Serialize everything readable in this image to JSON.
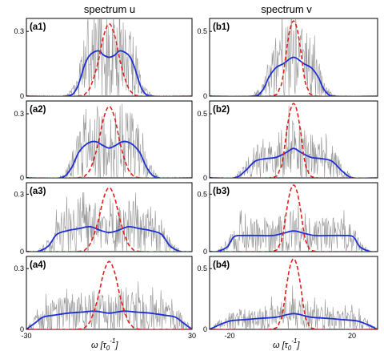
{
  "column_titles": {
    "left": "spectrum u",
    "right": "spectrum v"
  },
  "x_axis": {
    "left": {
      "ticks": [
        "-30",
        "30"
      ],
      "tick_values": [
        -30,
        30
      ],
      "range": [
        -30,
        30
      ]
    },
    "right": {
      "ticks": [
        "-20",
        "20"
      ],
      "tick_values": [
        -20,
        20
      ],
      "range": [
        -24,
        24
      ]
    },
    "label": "ω [τ",
    "label_sub": "0",
    "label_sup": "-1",
    "label_end": "]"
  },
  "chart_data": [
    {
      "type": "line",
      "panel": "(a1)",
      "ylim": [
        0,
        0.36
      ],
      "yticks": [
        0,
        0.3
      ],
      "ytick_labels": [
        "0",
        "0.3"
      ],
      "xlim": [
        -30,
        30
      ],
      "series": [
        {
          "style": "noisy",
          "color": "#8a8a8a",
          "x": [
            -8,
            -6,
            -4,
            -2,
            0,
            2,
            4,
            6,
            8
          ],
          "y": [
            0.2,
            0.24,
            0.22,
            0.24,
            0.2,
            0.25,
            0.22,
            0.23,
            0.19
          ]
        },
        {
          "style": "solid",
          "color": "#1f2fd6",
          "x": [
            -16,
            -12,
            -9,
            -7,
            -4,
            -2,
            0,
            2,
            4,
            7,
            9,
            12,
            16
          ],
          "y": [
            0,
            0.03,
            0.14,
            0.19,
            0.21,
            0.19,
            0.18,
            0.19,
            0.21,
            0.19,
            0.14,
            0.03,
            0
          ]
        },
        {
          "style": "dashed",
          "color": "#e0201b",
          "x": [
            -12,
            -8,
            -6,
            -4,
            -2,
            0,
            2,
            4,
            6,
            8,
            12
          ],
          "y": [
            0,
            0.02,
            0.07,
            0.16,
            0.28,
            0.335,
            0.28,
            0.16,
            0.07,
            0.02,
            0
          ]
        }
      ]
    },
    {
      "type": "line",
      "panel": "(b1)",
      "ylim": [
        0,
        0.6
      ],
      "yticks": [
        0,
        0.5
      ],
      "ytick_labels": [
        "0",
        "0.5"
      ],
      "xlim": [
        -24,
        24
      ],
      "series": [
        {
          "style": "noisy",
          "color": "#8a8a8a",
          "x": [
            -4,
            -2,
            0,
            2,
            4
          ],
          "y": [
            0.35,
            0.4,
            0.48,
            0.4,
            0.34
          ]
        },
        {
          "style": "solid",
          "color": "#1f2fd6",
          "x": [
            -12,
            -9,
            -7,
            -5,
            -3,
            -1,
            0,
            1,
            3,
            5,
            7,
            9,
            12
          ],
          "y": [
            0,
            0.04,
            0.15,
            0.22,
            0.25,
            0.29,
            0.3,
            0.29,
            0.25,
            0.22,
            0.15,
            0.04,
            0
          ]
        },
        {
          "style": "dashed",
          "color": "#e0201b",
          "x": [
            -7,
            -4,
            -3,
            -2,
            -1,
            0,
            1,
            2,
            3,
            4,
            7
          ],
          "y": [
            0,
            0.06,
            0.16,
            0.36,
            0.52,
            0.58,
            0.52,
            0.36,
            0.16,
            0.06,
            0
          ]
        }
      ]
    },
    {
      "type": "line",
      "panel": "(a2)",
      "ylim": [
        0,
        0.36
      ],
      "yticks": [
        0,
        0.3
      ],
      "ytick_labels": [
        "0",
        "0.3"
      ],
      "xlim": [
        -30,
        30
      ],
      "series": [
        {
          "style": "noisy",
          "color": "#8a8a8a",
          "x": [
            -10,
            -6,
            -3,
            0,
            3,
            6,
            10
          ],
          "y": [
            0.18,
            0.22,
            0.26,
            0.2,
            0.26,
            0.22,
            0.18
          ]
        },
        {
          "style": "solid",
          "color": "#1f2fd6",
          "x": [
            -18,
            -14,
            -11,
            -8,
            -5,
            -2,
            0,
            2,
            5,
            8,
            11,
            14,
            18
          ],
          "y": [
            0,
            0.04,
            0.12,
            0.16,
            0.17,
            0.15,
            0.14,
            0.15,
            0.17,
            0.16,
            0.12,
            0.04,
            0
          ]
        },
        {
          "style": "dashed",
          "color": "#e0201b",
          "x": [
            -12,
            -8,
            -6,
            -4,
            -2,
            0,
            2,
            4,
            6,
            8,
            12
          ],
          "y": [
            0,
            0.02,
            0.07,
            0.16,
            0.28,
            0.335,
            0.28,
            0.16,
            0.07,
            0.02,
            0
          ]
        }
      ]
    },
    {
      "type": "line",
      "panel": "(b2)",
      "ylim": [
        0,
        0.6
      ],
      "yticks": [
        0,
        0.5
      ],
      "ytick_labels": [
        "0",
        "0.5"
      ],
      "xlim": [
        -24,
        24
      ],
      "series": [
        {
          "style": "noisy",
          "color": "#8a8a8a",
          "x": [
            -6,
            -3,
            0,
            3,
            6
          ],
          "y": [
            0.28,
            0.33,
            0.38,
            0.33,
            0.28
          ]
        },
        {
          "style": "solid",
          "color": "#1f2fd6",
          "x": [
            -17,
            -14,
            -11,
            -8,
            -5,
            -2,
            0,
            2,
            5,
            8,
            11,
            14,
            17
          ],
          "y": [
            0,
            0.05,
            0.13,
            0.15,
            0.16,
            0.2,
            0.23,
            0.2,
            0.16,
            0.15,
            0.13,
            0.05,
            0
          ]
        },
        {
          "style": "dashed",
          "color": "#e0201b",
          "x": [
            -7,
            -4,
            -3,
            -2,
            -1,
            0,
            1,
            2,
            3,
            4,
            7
          ],
          "y": [
            0,
            0.06,
            0.16,
            0.36,
            0.52,
            0.58,
            0.52,
            0.36,
            0.16,
            0.06,
            0
          ]
        }
      ]
    },
    {
      "type": "line",
      "panel": "(a3)",
      "ylim": [
        0,
        0.36
      ],
      "yticks": [
        0,
        0.3
      ],
      "ytick_labels": [
        "0",
        "0.3"
      ],
      "xlim": [
        -30,
        30
      ],
      "series": [
        {
          "style": "noisy",
          "color": "#8a8a8a",
          "x": [
            -14,
            -8,
            -4,
            0,
            4,
            8,
            14
          ],
          "y": [
            0.12,
            0.18,
            0.2,
            0.16,
            0.2,
            0.18,
            0.12
          ]
        },
        {
          "style": "solid",
          "color": "#1f2fd6",
          "x": [
            -26,
            -22,
            -19,
            -15,
            -11,
            -7,
            -3,
            0,
            3,
            7,
            11,
            15,
            19,
            22,
            26
          ],
          "y": [
            0,
            0.03,
            0.09,
            0.11,
            0.12,
            0.13,
            0.11,
            0.1,
            0.11,
            0.13,
            0.12,
            0.11,
            0.09,
            0.03,
            0
          ]
        },
        {
          "style": "dashed",
          "color": "#e0201b",
          "x": [
            -12,
            -8,
            -6,
            -4,
            -2,
            0,
            2,
            4,
            6,
            8,
            12
          ],
          "y": [
            0,
            0.02,
            0.07,
            0.16,
            0.28,
            0.335,
            0.28,
            0.16,
            0.07,
            0.02,
            0
          ]
        }
      ]
    },
    {
      "type": "line",
      "panel": "(b3)",
      "ylim": [
        0,
        0.6
      ],
      "yticks": [
        0,
        0.5
      ],
      "ytick_labels": [
        "0",
        "0.5"
      ],
      "xlim": [
        -24,
        24
      ],
      "series": [
        {
          "style": "noisy",
          "color": "#8a8a8a",
          "x": [
            -8,
            -4,
            0,
            4,
            8
          ],
          "y": [
            0.2,
            0.24,
            0.28,
            0.24,
            0.2
          ]
        },
        {
          "style": "solid",
          "color": "#1f2fd6",
          "x": [
            -22,
            -19,
            -17,
            -14,
            -10,
            -6,
            -3,
            0,
            3,
            6,
            10,
            14,
            17,
            19,
            22
          ],
          "y": [
            0,
            0.04,
            0.13,
            0.14,
            0.14,
            0.14,
            0.16,
            0.18,
            0.16,
            0.14,
            0.14,
            0.14,
            0.13,
            0.04,
            0
          ]
        },
        {
          "style": "dashed",
          "color": "#e0201b",
          "x": [
            -7,
            -4,
            -3,
            -2,
            -1,
            0,
            1,
            2,
            3,
            4,
            7
          ],
          "y": [
            0,
            0.06,
            0.16,
            0.36,
            0.52,
            0.58,
            0.52,
            0.36,
            0.16,
            0.06,
            0
          ]
        }
      ]
    },
    {
      "type": "line",
      "panel": "(a4)",
      "ylim": [
        0,
        0.36
      ],
      "yticks": [
        0,
        0.3
      ],
      "ytick_labels": [
        "0",
        "0.3"
      ],
      "xlim": [
        -30,
        30
      ],
      "series": [
        {
          "style": "noisy",
          "color": "#8a8a8a",
          "x": [
            -20,
            -10,
            0,
            10,
            20
          ],
          "y": [
            0.1,
            0.12,
            0.11,
            0.12,
            0.1
          ]
        },
        {
          "style": "solid",
          "color": "#1f2fd6",
          "x": [
            -30,
            -27,
            -24,
            -20,
            -15,
            -10,
            -5,
            0,
            5,
            10,
            15,
            20,
            24,
            27,
            30
          ],
          "y": [
            0,
            0.03,
            0.06,
            0.07,
            0.08,
            0.085,
            0.09,
            0.08,
            0.09,
            0.085,
            0.08,
            0.07,
            0.06,
            0.03,
            0
          ]
        },
        {
          "style": "dashed",
          "color": "#e0201b",
          "x": [
            -12,
            -8,
            -6,
            -4,
            -2,
            0,
            2,
            4,
            6,
            8,
            12
          ],
          "y": [
            0,
            0.02,
            0.07,
            0.16,
            0.28,
            0.335,
            0.28,
            0.16,
            0.07,
            0.02,
            0
          ]
        }
      ]
    },
    {
      "type": "line",
      "panel": "(b4)",
      "ylim": [
        0,
        0.6
      ],
      "yticks": [
        0,
        0.5
      ],
      "ytick_labels": [
        "0",
        "0.5"
      ],
      "xlim": [
        -24,
        24
      ],
      "series": [
        {
          "style": "noisy",
          "color": "#8a8a8a",
          "x": [
            -15,
            -8,
            0,
            8,
            15
          ],
          "y": [
            0.14,
            0.16,
            0.18,
            0.16,
            0.14
          ]
        },
        {
          "style": "solid",
          "color": "#1f2fd6",
          "x": [
            -24,
            -21,
            -18,
            -14,
            -10,
            -5,
            -2,
            0,
            2,
            5,
            10,
            14,
            18,
            21,
            24
          ],
          "y": [
            0,
            0.04,
            0.07,
            0.08,
            0.09,
            0.1,
            0.12,
            0.13,
            0.12,
            0.1,
            0.09,
            0.08,
            0.07,
            0.04,
            0
          ]
        },
        {
          "style": "dashed",
          "color": "#e0201b",
          "x": [
            -7,
            -4,
            -3,
            -2,
            -1,
            0,
            1,
            2,
            3,
            4,
            7
          ],
          "y": [
            0,
            0.06,
            0.16,
            0.36,
            0.52,
            0.58,
            0.52,
            0.36,
            0.16,
            0.06,
            0
          ]
        }
      ]
    }
  ]
}
